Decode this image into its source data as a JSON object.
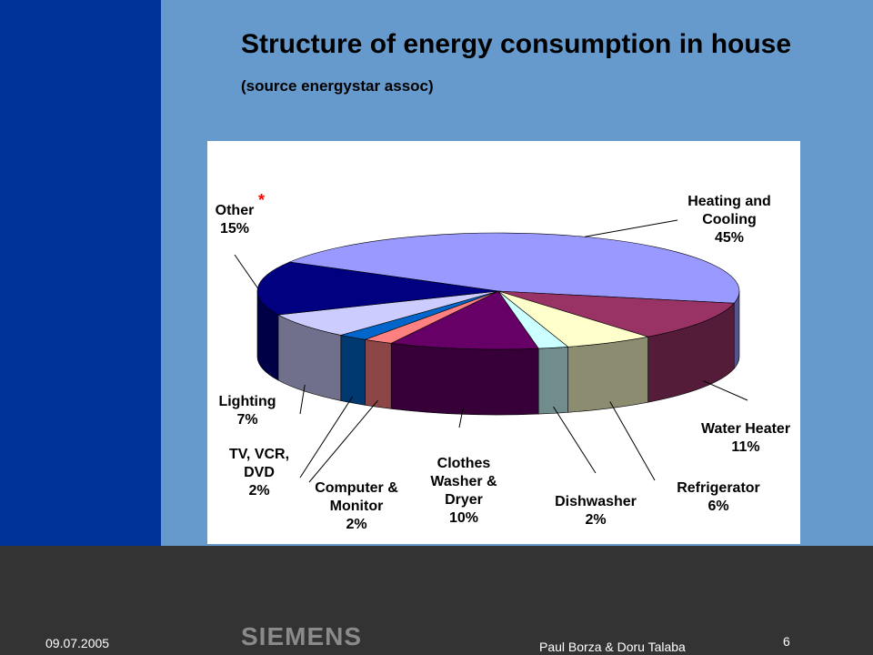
{
  "chart_data": {
    "type": "pie",
    "title": "Structure of energy consumption in house",
    "subtitle": "(source energystar assoc)",
    "categories": [
      "Heating and Cooling",
      "Water Heater",
      "Refrigerator",
      "Dishwasher",
      "Clothes Washer & Dryer",
      "Computer & Monitor",
      "TV, VCR, DVD",
      "Lighting",
      "Other"
    ],
    "values": [
      45,
      11,
      6,
      2,
      10,
      2,
      2,
      7,
      15
    ],
    "value_labels": [
      "45%",
      "11%",
      "6%",
      "2%",
      "10%",
      "2%",
      "2%",
      "7%",
      "15%"
    ],
    "colors": [
      "#9999ff",
      "#993366",
      "#ffffcc",
      "#ccffff",
      "#660066",
      "#ff8080",
      "#0066cc",
      "#ccccff",
      "#000080"
    ],
    "annotations": [
      "*"
    ]
  },
  "footer": {
    "date": "09.07.2005",
    "logo": "SIEMENS",
    "author": "Paul Borza & Doru Talaba",
    "page": "6"
  }
}
